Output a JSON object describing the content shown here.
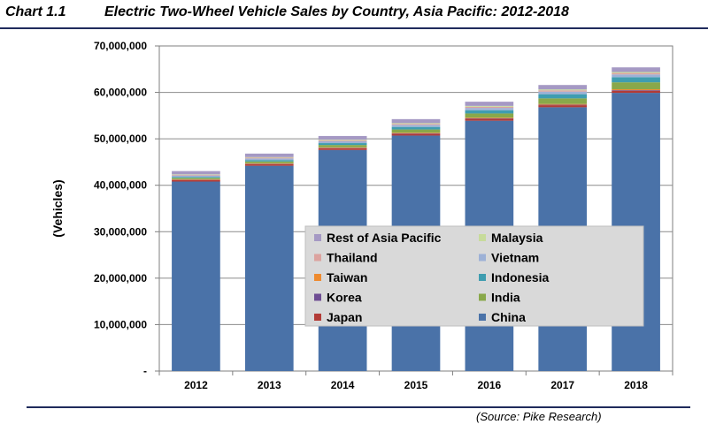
{
  "header": {
    "chart_number": "Chart 1.1",
    "title": "Electric Two-Wheel Vehicle Sales by Country, Asia Pacific: 2012-2018"
  },
  "source": "(Source: Pike Research)",
  "chart_data": {
    "type": "bar",
    "stacked": true,
    "title": "Electric Two-Wheel Vehicle Sales by Country, Asia Pacific: 2012-2018",
    "xlabel": "",
    "ylabel": "(Vehicles)",
    "ylim": [
      0,
      70000000
    ],
    "yticks": [
      0,
      10000000,
      20000000,
      30000000,
      40000000,
      50000000,
      60000000,
      70000000
    ],
    "ytick_labels": [
      "-",
      "10,000,000",
      "20,000,000",
      "30,000,000",
      "40,000,000",
      "50,000,000",
      "60,000,000",
      "70,000,000"
    ],
    "categories": [
      "2012",
      "2013",
      "2014",
      "2015",
      "2016",
      "2017",
      "2018"
    ],
    "legend_position": "center-right",
    "legend_order": [
      "Rest of Asia Pacific",
      "Malaysia",
      "Thailand",
      "Vietnam",
      "Taiwan",
      "Indonesia",
      "Korea",
      "India",
      "Japan",
      "China"
    ],
    "series": [
      {
        "name": "China",
        "color": "#4a72a8",
        "values": [
          40800000,
          44200000,
          47600000,
          50700000,
          53900000,
          56800000,
          59900000
        ]
      },
      {
        "name": "Japan",
        "color": "#b23b36",
        "values": [
          350000,
          360000,
          380000,
          400000,
          420000,
          440000,
          460000
        ]
      },
      {
        "name": "Korea",
        "color": "#6e4d93",
        "values": [
          50000,
          60000,
          70000,
          80000,
          90000,
          100000,
          120000
        ]
      },
      {
        "name": "Taiwan",
        "color": "#ee8a2e",
        "values": [
          100000,
          110000,
          120000,
          130000,
          150000,
          170000,
          190000
        ]
      },
      {
        "name": "India",
        "color": "#89a84a",
        "values": [
          300000,
          400000,
          500000,
          700000,
          900000,
          1200000,
          1500000
        ]
      },
      {
        "name": "Indonesia",
        "color": "#3f9db0",
        "values": [
          200000,
          300000,
          400000,
          550000,
          700000,
          900000,
          1100000
        ]
      },
      {
        "name": "Vietnam",
        "color": "#9db1d6",
        "values": [
          300000,
          350000,
          400000,
          450000,
          500000,
          550000,
          600000
        ]
      },
      {
        "name": "Thailand",
        "color": "#dca39f",
        "values": [
          150000,
          170000,
          200000,
          220000,
          250000,
          280000,
          300000
        ]
      },
      {
        "name": "Malaysia",
        "color": "#c7db9b",
        "values": [
          100000,
          120000,
          140000,
          160000,
          180000,
          200000,
          220000
        ]
      },
      {
        "name": "Rest of Asia Pacific",
        "color": "#a599c4",
        "values": [
          700000,
          750000,
          800000,
          850000,
          900000,
          950000,
          1000000
        ]
      }
    ]
  }
}
